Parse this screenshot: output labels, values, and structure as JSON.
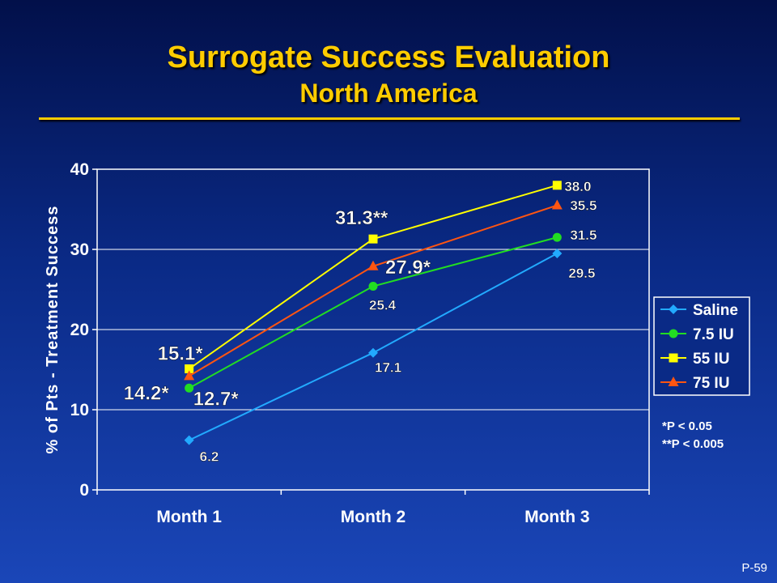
{
  "slide": {
    "title": "Surrogate Success Evaluation",
    "subtitle": "North America",
    "footnote1": "*P < 0.05",
    "footnote2": "**P < 0.005",
    "page_number": "P-59"
  },
  "colors": {
    "Saline": "#22aaff",
    "7.5 IU": "#22dd22",
    "55 IU": "#ffff00",
    "75 IU": "#ff5511"
  },
  "chart_data": {
    "type": "line",
    "title": "",
    "xlabel": "",
    "ylabel": "% of Pts - Treatment Success",
    "categories": [
      "Month 1",
      "Month 2",
      "Month 3"
    ],
    "ylim": [
      0,
      40
    ],
    "yticks": [
      0,
      10,
      20,
      30,
      40
    ],
    "grid": true,
    "legend_position": "right",
    "series": [
      {
        "name": "Saline",
        "marker": "diamond",
        "values": [
          6.2,
          17.1,
          29.5
        ],
        "labels": [
          "6.2",
          "17.1",
          "29.5"
        ]
      },
      {
        "name": "7.5 IU",
        "marker": "circle",
        "values": [
          12.7,
          25.4,
          31.5
        ],
        "labels": [
          "12.7*",
          "25.4",
          "31.5"
        ]
      },
      {
        "name": "55 IU",
        "marker": "square",
        "values": [
          15.1,
          31.3,
          38.0
        ],
        "labels": [
          "15.1*",
          "31.3**",
          "38.0"
        ]
      },
      {
        "name": "75 IU",
        "marker": "triangle",
        "values": [
          14.2,
          27.9,
          35.5
        ],
        "labels": [
          "14.2*",
          "27.9*",
          "35.5"
        ]
      }
    ]
  }
}
